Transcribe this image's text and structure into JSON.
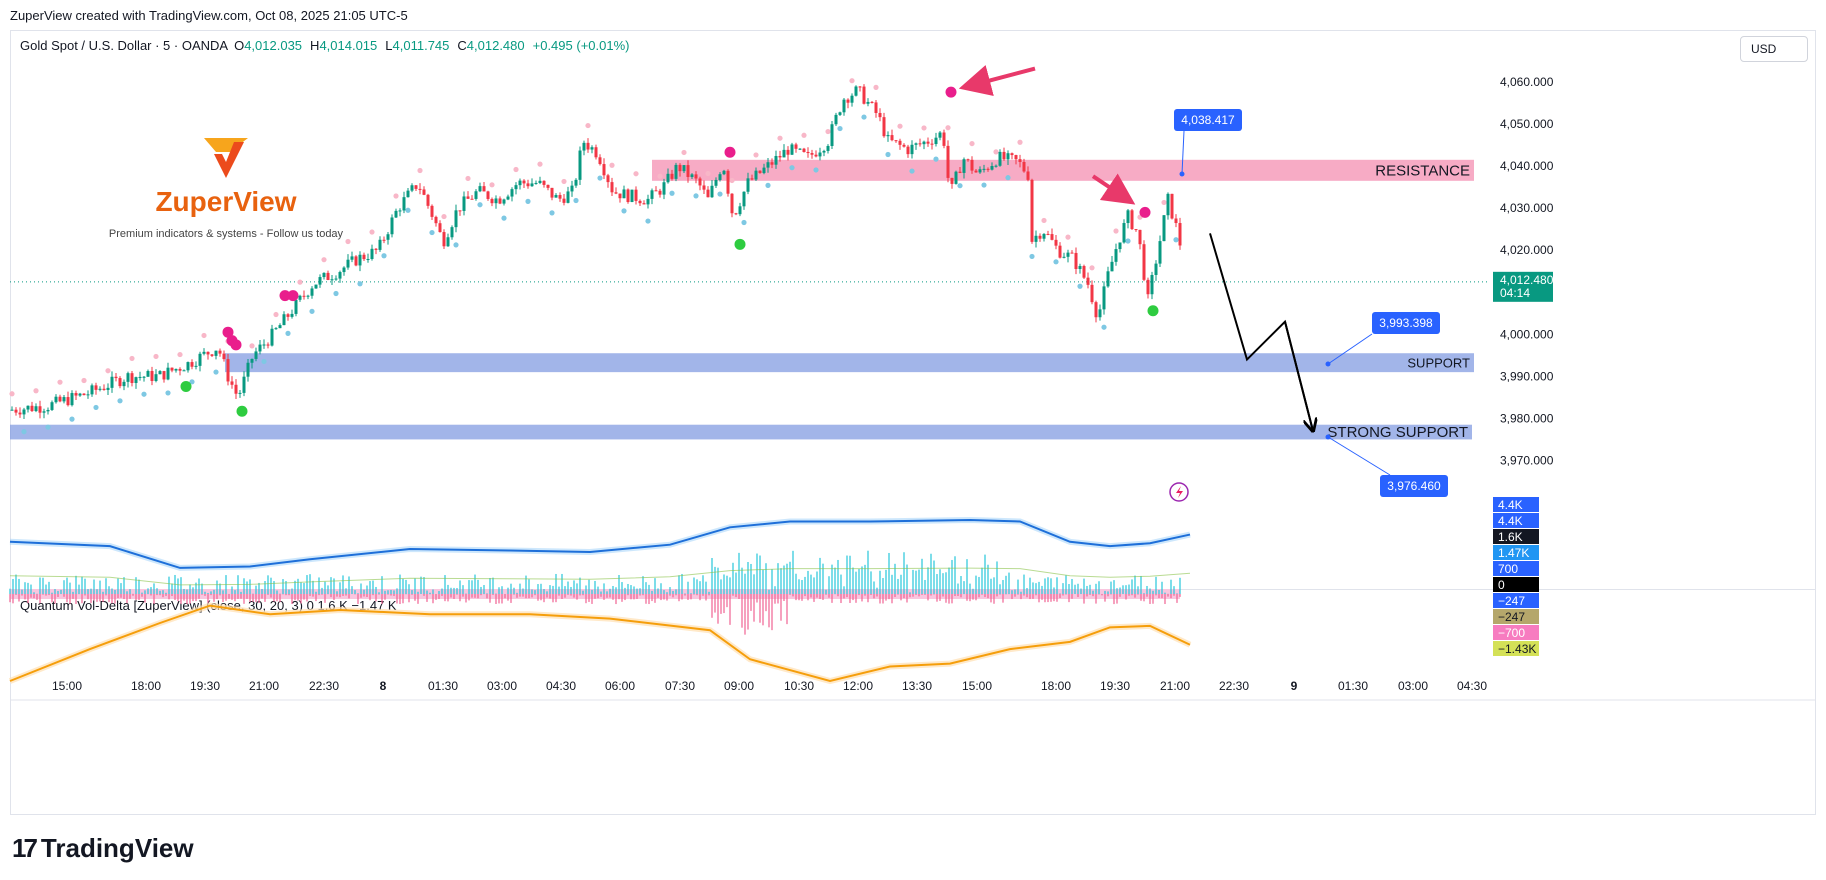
{
  "header": {
    "attribution": "ZuperView created with TradingView.com, Oct 08, 2025 21:05 UTC-5",
    "symbol": "Gold Spot / U.S. Dollar · 5 · OANDA",
    "ohlc": [
      {
        "k": "O",
        "v": "4,012.035"
      },
      {
        "k": "H",
        "v": "4,014.015"
      },
      {
        "k": "L",
        "v": "4,011.745"
      },
      {
        "k": "C",
        "v": "4,012.480"
      },
      {
        "k": "",
        "v": "+0.495 (+0.01%)"
      }
    ],
    "currency_button": "USD"
  },
  "brand": {
    "name": "ZuperView",
    "tagline": "Premium indicators & systems - Follow us today"
  },
  "indicator": {
    "legend": "Quantum Vol-Delta [ZuperView] (close, 30, 20, 3)  0  1.6 K  −1.47 K",
    "axis_labels": [
      {
        "text": "4.4K",
        "value": 4400,
        "bg": "#2962ff",
        "fg": "#ffffff"
      },
      {
        "text": "4.4K",
        "value": 4400,
        "bg": "#2962ff",
        "fg": "#ffffff"
      },
      {
        "text": "1.6K",
        "value": 1600,
        "bg": "#131722",
        "fg": "#ffffff"
      },
      {
        "text": "1.47K",
        "value": 1470,
        "bg": "#2196f3",
        "fg": "#ffffff"
      },
      {
        "text": "700",
        "value": 700,
        "bg": "#2962ff",
        "fg": "#ffffff"
      },
      {
        "text": "0",
        "value": 0,
        "bg": "#000000",
        "fg": "#ffffff"
      },
      {
        "text": "−247",
        "value": -247,
        "bg": "#2962ff",
        "fg": "#ffffff"
      },
      {
        "text": "−247",
        "value": -247,
        "bg": "#b5a76b",
        "fg": "#131722"
      },
      {
        "text": "−700",
        "value": -700,
        "bg": "#f77cc0",
        "fg": "#ffffff"
      },
      {
        "text": "−1.43K",
        "value": -1430,
        "bg": "#d4e157",
        "fg": "#131722"
      }
    ]
  },
  "footer": {
    "logo_text": "TradingView"
  },
  "colors": {
    "up": "#089981",
    "down": "#f23645",
    "resistance": "#f48fb1",
    "support": "#7b95e0",
    "marker_pink": "#e91e8c",
    "marker_green": "#2ecc40",
    "dot_blue": "#7ec8e3",
    "dot_pink": "#f8b7c8",
    "callout": "#2962ff",
    "last_price": "#089981",
    "upper_band": "#1e6fd9",
    "lower_band": "#f59e0b"
  },
  "chart_data": {
    "type": "candlestick",
    "symbol": "XAUUSD",
    "interval": "5",
    "y_axis": {
      "ticks": [
        {
          "text": "4,060.000",
          "value": 4060
        },
        {
          "text": "4,050.000",
          "value": 4050
        },
        {
          "text": "4,040.000",
          "value": 4040
        },
        {
          "text": "4,030.000",
          "value": 4030
        },
        {
          "text": "4,020.000",
          "value": 4020
        },
        {
          "text": "4,000.000",
          "value": 4000
        },
        {
          "text": "3,990.000",
          "value": 3990
        },
        {
          "text": "3,980.000",
          "value": 3980
        },
        {
          "text": "3,970.000",
          "value": 3970
        }
      ],
      "range": [
        3965,
        4070
      ]
    },
    "x_axis": {
      "ticks": [
        "15:00",
        "18:00",
        "19:30",
        "21:00",
        "22:30",
        "8",
        "01:30",
        "03:00",
        "04:30",
        "06:00",
        "07:30",
        "09:00",
        "10:30",
        "12:00",
        "13:30",
        "15:00",
        "18:00",
        "19:30",
        "21:00",
        "22:30",
        "9",
        "01:30",
        "03:00",
        "04:30"
      ],
      "bold_ticks": [
        "8",
        "9"
      ]
    },
    "last_price": {
      "value": 4012.48,
      "text": "4,012.480",
      "countdown": "04:14"
    },
    "price_series": [
      [
        0,
        3982
      ],
      [
        40,
        3983
      ],
      [
        80,
        3986
      ],
      [
        120,
        3990
      ],
      [
        150,
        3990
      ],
      [
        180,
        3993
      ],
      [
        210,
        3997
      ],
      [
        220,
        3990
      ],
      [
        230,
        3985
      ],
      [
        245,
        3995
      ],
      [
        265,
        4000
      ],
      [
        285,
        4006
      ],
      [
        305,
        4012
      ],
      [
        330,
        4015
      ],
      [
        350,
        4018
      ],
      [
        370,
        4020
      ],
      [
        390,
        4030
      ],
      [
        410,
        4036
      ],
      [
        425,
        4028
      ],
      [
        435,
        4022
      ],
      [
        450,
        4030
      ],
      [
        470,
        4034
      ],
      [
        490,
        4032
      ],
      [
        510,
        4036
      ],
      [
        530,
        4036
      ],
      [
        550,
        4032
      ],
      [
        565,
        4034
      ],
      [
        575,
        4046
      ],
      [
        590,
        4043
      ],
      [
        605,
        4034
      ],
      [
        620,
        4033
      ],
      [
        640,
        4032
      ],
      [
        655,
        4035
      ],
      [
        670,
        4040
      ],
      [
        690,
        4036
      ],
      [
        700,
        4032
      ],
      [
        715,
        4041
      ],
      [
        725,
        4028
      ],
      [
        740,
        4036
      ],
      [
        760,
        4040
      ],
      [
        780,
        4044
      ],
      [
        800,
        4042
      ],
      [
        820,
        4046
      ],
      [
        835,
        4056
      ],
      [
        850,
        4058
      ],
      [
        870,
        4052
      ],
      [
        880,
        4046
      ],
      [
        900,
        4044
      ],
      [
        920,
        4046
      ],
      [
        935,
        4048
      ],
      [
        942,
        4033
      ],
      [
        955,
        4042
      ],
      [
        970,
        4038
      ],
      [
        990,
        4042
      ],
      [
        1010,
        4041
      ],
      [
        1020,
        4038
      ],
      [
        1022,
        4022
      ],
      [
        1035,
        4025
      ],
      [
        1050,
        4020
      ],
      [
        1065,
        4018
      ],
      [
        1080,
        4012
      ],
      [
        1090,
        4004
      ],
      [
        1100,
        4014
      ],
      [
        1110,
        4022
      ],
      [
        1120,
        4028
      ],
      [
        1130,
        4024
      ],
      [
        1140,
        4008
      ],
      [
        1150,
        4020
      ],
      [
        1160,
        4032
      ],
      [
        1170,
        4024
      ],
      [
        1180,
        4012
      ]
    ],
    "zones": [
      {
        "label": "RESISTANCE",
        "top": 4041.5,
        "bottom": 4036.5
      },
      {
        "label": "SUPPORT",
        "top": 3995.5,
        "bottom": 3991
      },
      {
        "label": "STRONG SUPPORT",
        "top": 3978.5,
        "bottom": 3975
      }
    ],
    "callouts": [
      {
        "text": "4,038.417",
        "value": 4038.417
      },
      {
        "text": "3,993.398",
        "value": 3993.398
      },
      {
        "text": "3,976.460",
        "value": 3976.46
      }
    ],
    "projection_path": [
      [
        1200,
        4024
      ],
      [
        1237,
        3994
      ],
      [
        1275,
        4003
      ],
      [
        1303,
        3977
      ]
    ],
    "signals": [
      {
        "type": "sell",
        "x": 218,
        "price": 4000.5
      },
      {
        "type": "sell",
        "x": 222,
        "price": 3998.5
      },
      {
        "type": "sell",
        "x": 226,
        "price": 3997.5
      },
      {
        "type": "sell",
        "x": 275,
        "price": 4009.2
      },
      {
        "type": "sell",
        "x": 283,
        "price": 4009.2
      },
      {
        "type": "sell",
        "x": 720,
        "price": 4043.3
      },
      {
        "type": "sell",
        "x": 941,
        "price": 4057.6
      },
      {
        "type": "sell",
        "x": 1135,
        "price": 4029
      },
      {
        "type": "buy",
        "x": 176,
        "price": 3987.6
      },
      {
        "type": "buy",
        "x": 232,
        "price": 3981.7
      },
      {
        "type": "buy",
        "x": 730,
        "price": 4021.4
      },
      {
        "type": "buy",
        "x": 1143,
        "price": 4005.6
      }
    ],
    "annotations": [
      {
        "type": "arrow",
        "from": [
          1025,
          4063.2
        ],
        "to": [
          955,
          4058.8
        ]
      },
      {
        "type": "arrow",
        "from": [
          1083,
          4037.6
        ],
        "to": [
          1120,
          4031.7
        ]
      }
    ],
    "indicator_series": {
      "upper_band": [
        [
          0,
          3600
        ],
        [
          100,
          3300
        ],
        [
          170,
          1800
        ],
        [
          240,
          1900
        ],
        [
          300,
          2400
        ],
        [
          400,
          3100
        ],
        [
          500,
          3000
        ],
        [
          580,
          2900
        ],
        [
          660,
          3400
        ],
        [
          720,
          4600
        ],
        [
          780,
          5000
        ],
        [
          860,
          5000
        ],
        [
          960,
          5100
        ],
        [
          1010,
          5000
        ],
        [
          1060,
          3600
        ],
        [
          1100,
          3300
        ],
        [
          1140,
          3500
        ],
        [
          1180,
          4100
        ]
      ],
      "lower_band": [
        [
          0,
          -6000
        ],
        [
          80,
          -3800
        ],
        [
          150,
          -2000
        ],
        [
          200,
          -800
        ],
        [
          260,
          -1400
        ],
        [
          330,
          -1100
        ],
        [
          420,
          -1400
        ],
        [
          520,
          -1400
        ],
        [
          600,
          -1700
        ],
        [
          700,
          -2500
        ],
        [
          740,
          -4500
        ],
        [
          820,
          -6000
        ],
        [
          880,
          -5000
        ],
        [
          940,
          -4800
        ],
        [
          1000,
          -3800
        ],
        [
          1060,
          -3300
        ],
        [
          1100,
          -2300
        ],
        [
          1140,
          -2200
        ],
        [
          1180,
          -3500
        ]
      ]
    }
  }
}
